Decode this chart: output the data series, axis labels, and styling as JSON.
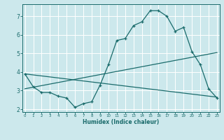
{
  "xlabel": "Humidex (Indice chaleur)",
  "bg_color": "#cce8ec",
  "grid_color": "#ffffff",
  "line_color": "#1a6b6b",
  "line1_x": [
    0,
    1,
    2,
    3,
    4,
    5,
    6,
    7,
    8,
    9,
    10,
    11,
    12,
    13,
    14,
    15,
    16,
    17,
    18,
    19,
    20,
    21,
    22,
    23
  ],
  "line1_y": [
    3.9,
    3.2,
    2.9,
    2.9,
    2.7,
    2.6,
    2.1,
    2.3,
    2.4,
    3.3,
    4.4,
    5.7,
    5.8,
    6.5,
    6.7,
    7.3,
    7.3,
    7.0,
    6.2,
    6.4,
    5.1,
    4.4,
    3.1,
    2.6
  ],
  "line2_x": [
    0,
    23
  ],
  "line2_y": [
    3.1,
    5.05
  ],
  "line3_x": [
    0,
    23
  ],
  "line3_y": [
    3.9,
    2.65
  ],
  "xlim": [
    -0.3,
    23.3
  ],
  "ylim": [
    1.85,
    7.65
  ],
  "xticks": [
    0,
    1,
    2,
    3,
    4,
    5,
    6,
    7,
    8,
    9,
    10,
    11,
    12,
    13,
    14,
    15,
    16,
    17,
    18,
    19,
    20,
    21,
    22,
    23
  ],
  "yticks": [
    2,
    3,
    4,
    5,
    6,
    7
  ],
  "xtick_labels": [
    "0",
    "1",
    "2",
    "3",
    "4",
    "5",
    "6",
    "7",
    "8",
    "9",
    "10",
    "11",
    "12",
    "13",
    "14",
    "15",
    "16",
    "17",
    "18",
    "19",
    "20",
    "21",
    "22",
    "23"
  ]
}
